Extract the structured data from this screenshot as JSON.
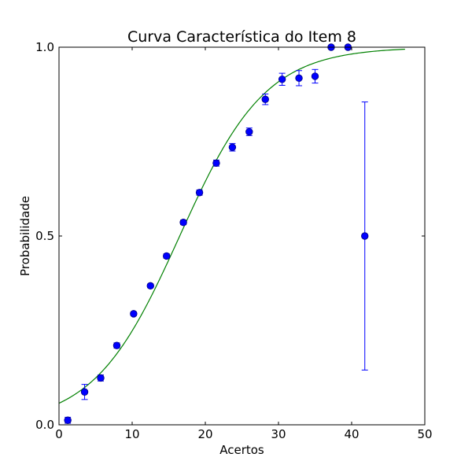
{
  "chart_data": {
    "type": "scatter",
    "title": "Curva Característica do Item 8",
    "xlabel": "Acertos",
    "ylabel": "Probabilidade",
    "xlim": [
      0,
      50
    ],
    "ylim": [
      0,
      1
    ],
    "xticks": [
      0,
      10,
      20,
      30,
      40,
      50
    ],
    "xtick_labels": [
      "0",
      "10",
      "20",
      "30",
      "40",
      "50"
    ],
    "yticks": [
      0,
      0.5,
      1
    ],
    "ytick_labels": [
      "0.0",
      "0.5",
      "1.0"
    ],
    "grid": false,
    "colors": {
      "points": "#0000ff",
      "points_edge": "#000080",
      "errorbar": "#0000ff",
      "curve": "#008000"
    },
    "observed": {
      "x": [
        1.2,
        3.5,
        5.7,
        7.9,
        10.2,
        12.5,
        14.7,
        17.0,
        19.2,
        21.5,
        23.7,
        26.0,
        28.2,
        30.5,
        32.8,
        35.0,
        37.2,
        39.5,
        41.8
      ],
      "y": [
        0.012,
        0.087,
        0.124,
        0.21,
        0.294,
        0.368,
        0.447,
        0.536,
        0.615,
        0.693,
        0.735,
        0.776,
        0.862,
        0.915,
        0.918,
        0.923,
        1.0,
        1.0,
        0.5
      ],
      "err": [
        0.008,
        0.02,
        0.008,
        0.007,
        0.005,
        0.005,
        0.006,
        0.006,
        0.007,
        0.008,
        0.01,
        0.01,
        0.014,
        0.016,
        0.02,
        0.018,
        0.0,
        0.0,
        0.355
      ]
    },
    "fitted_curve": {
      "type": "logistic",
      "a": 0.17,
      "b": 16.5,
      "x_range": [
        0,
        47.3
      ]
    }
  }
}
